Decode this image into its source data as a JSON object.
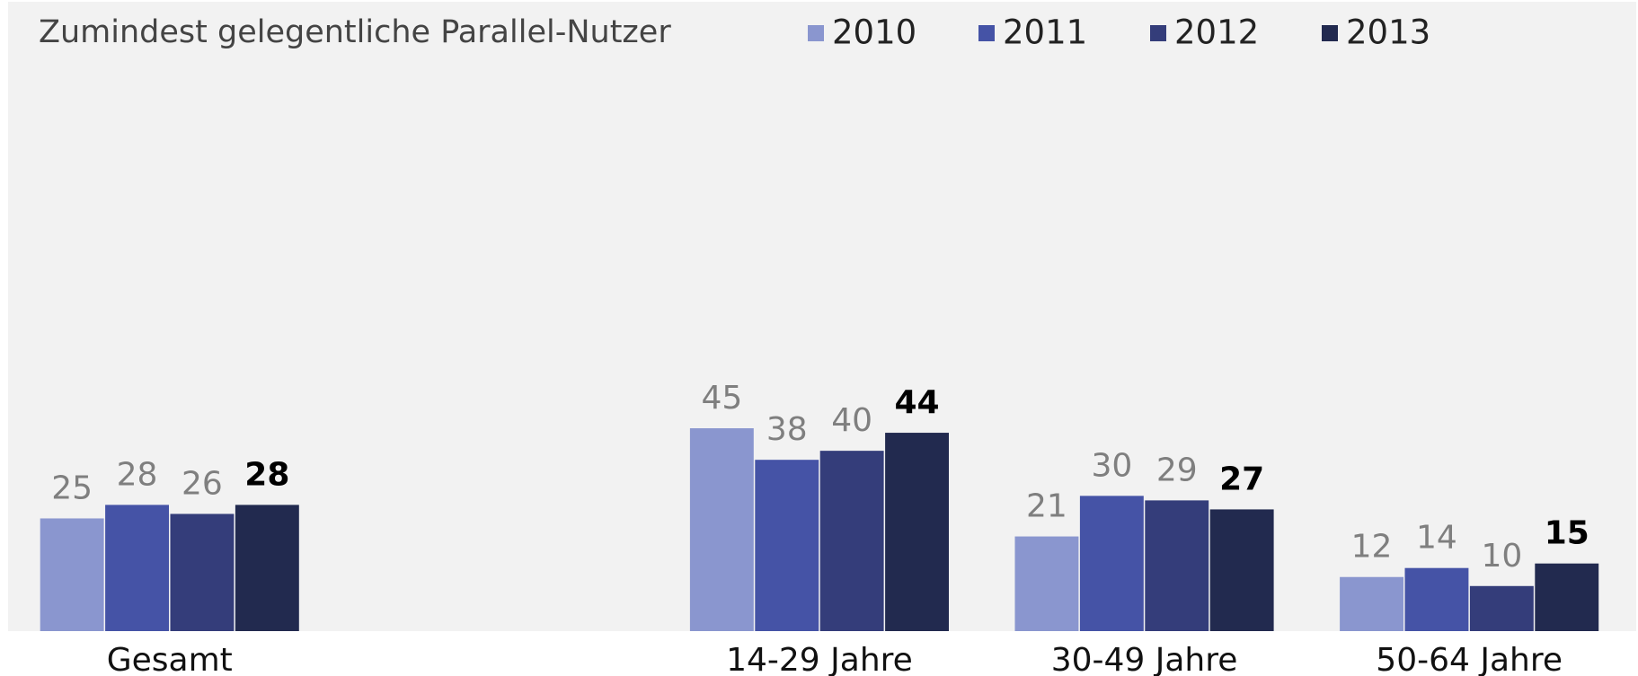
{
  "chart_data": {
    "type": "bar",
    "title": "Zumindest gelegentliche Parallel-Nutzer",
    "categories": [
      "Gesamt",
      null,
      "14-29 Jahre",
      "30-49 Jahre",
      "50-64 Jahre"
    ],
    "series": [
      {
        "name": "2010",
        "color": "#8a96cf",
        "values": [
          25,
          null,
          45,
          21,
          12
        ]
      },
      {
        "name": "2011",
        "color": "#4553a6",
        "values": [
          28,
          null,
          38,
          30,
          14
        ]
      },
      {
        "name": "2012",
        "color": "#343d7a",
        "values": [
          26,
          null,
          40,
          29,
          10
        ]
      },
      {
        "name": "2013",
        "color": "#222a4f",
        "values": [
          28,
          null,
          44,
          27,
          15
        ]
      }
    ],
    "ylim": [
      0,
      140
    ]
  }
}
